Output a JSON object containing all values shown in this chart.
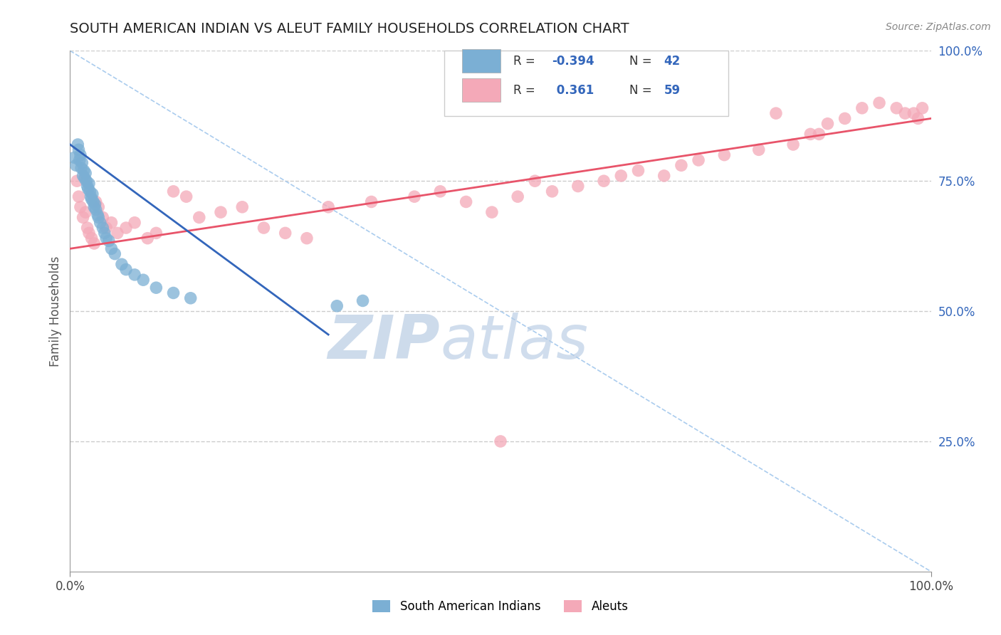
{
  "title": "SOUTH AMERICAN INDIAN VS ALEUT FAMILY HOUSEHOLDS CORRELATION CHART",
  "source": "Source: ZipAtlas.com",
  "ylabel": "Family Households",
  "legend_blue_label": "South American Indians",
  "legend_pink_label": "Aleuts",
  "xlim": [
    0,
    1.0
  ],
  "ylim": [
    0,
    1.0
  ],
  "yticks_right": [
    0.25,
    0.5,
    0.75,
    1.0
  ],
  "ytick_right_labels": [
    "25.0%",
    "50.0%",
    "75.0%",
    "100.0%"
  ],
  "grid_color": "#cccccc",
  "background_color": "#ffffff",
  "blue_color": "#7bafd4",
  "pink_color": "#f4a9b8",
  "blue_line_color": "#3366bb",
  "pink_line_color": "#e8546a",
  "diag_line_color": "#aaccee",
  "title_color": "#222222",
  "source_color": "#888888",
  "blue_points_x": [
    0.005,
    0.007,
    0.009,
    0.01,
    0.011,
    0.012,
    0.013,
    0.014,
    0.015,
    0.016,
    0.017,
    0.018,
    0.019,
    0.02,
    0.021,
    0.022,
    0.023,
    0.024,
    0.025,
    0.026,
    0.027,
    0.028,
    0.029,
    0.03,
    0.032,
    0.033,
    0.035,
    0.038,
    0.04,
    0.042,
    0.045,
    0.048,
    0.052,
    0.06,
    0.065,
    0.075,
    0.085,
    0.1,
    0.12,
    0.14,
    0.31,
    0.34
  ],
  "blue_points_y": [
    0.795,
    0.78,
    0.82,
    0.81,
    0.79,
    0.8,
    0.775,
    0.785,
    0.76,
    0.77,
    0.755,
    0.765,
    0.75,
    0.74,
    0.735,
    0.745,
    0.73,
    0.72,
    0.715,
    0.725,
    0.71,
    0.7,
    0.705,
    0.695,
    0.685,
    0.68,
    0.67,
    0.66,
    0.65,
    0.64,
    0.635,
    0.62,
    0.61,
    0.59,
    0.58,
    0.57,
    0.56,
    0.545,
    0.535,
    0.525,
    0.51,
    0.52
  ],
  "pink_points_x": [
    0.008,
    0.01,
    0.012,
    0.015,
    0.018,
    0.02,
    0.022,
    0.025,
    0.028,
    0.03,
    0.033,
    0.038,
    0.042,
    0.048,
    0.055,
    0.065,
    0.075,
    0.09,
    0.1,
    0.12,
    0.135,
    0.15,
    0.175,
    0.2,
    0.225,
    0.25,
    0.275,
    0.3,
    0.35,
    0.4,
    0.43,
    0.46,
    0.49,
    0.52,
    0.54,
    0.56,
    0.59,
    0.62,
    0.64,
    0.66,
    0.69,
    0.71,
    0.73,
    0.76,
    0.8,
    0.82,
    0.84,
    0.86,
    0.87,
    0.88,
    0.9,
    0.92,
    0.94,
    0.96,
    0.97,
    0.98,
    0.985,
    0.99,
    0.5
  ],
  "pink_points_y": [
    0.75,
    0.72,
    0.7,
    0.68,
    0.69,
    0.66,
    0.65,
    0.64,
    0.63,
    0.71,
    0.7,
    0.68,
    0.66,
    0.67,
    0.65,
    0.66,
    0.67,
    0.64,
    0.65,
    0.73,
    0.72,
    0.68,
    0.69,
    0.7,
    0.66,
    0.65,
    0.64,
    0.7,
    0.71,
    0.72,
    0.73,
    0.71,
    0.69,
    0.72,
    0.75,
    0.73,
    0.74,
    0.75,
    0.76,
    0.77,
    0.76,
    0.78,
    0.79,
    0.8,
    0.81,
    0.88,
    0.82,
    0.84,
    0.84,
    0.86,
    0.87,
    0.89,
    0.9,
    0.89,
    0.88,
    0.88,
    0.87,
    0.89,
    0.25
  ],
  "blue_line_x": [
    0.0,
    0.3
  ],
  "blue_line_y": [
    0.82,
    0.455
  ],
  "pink_line_x": [
    0.0,
    1.0
  ],
  "pink_line_y": [
    0.62,
    0.87
  ],
  "diag_line_x": [
    0.0,
    1.0
  ],
  "diag_line_y": [
    1.0,
    0.0
  ]
}
